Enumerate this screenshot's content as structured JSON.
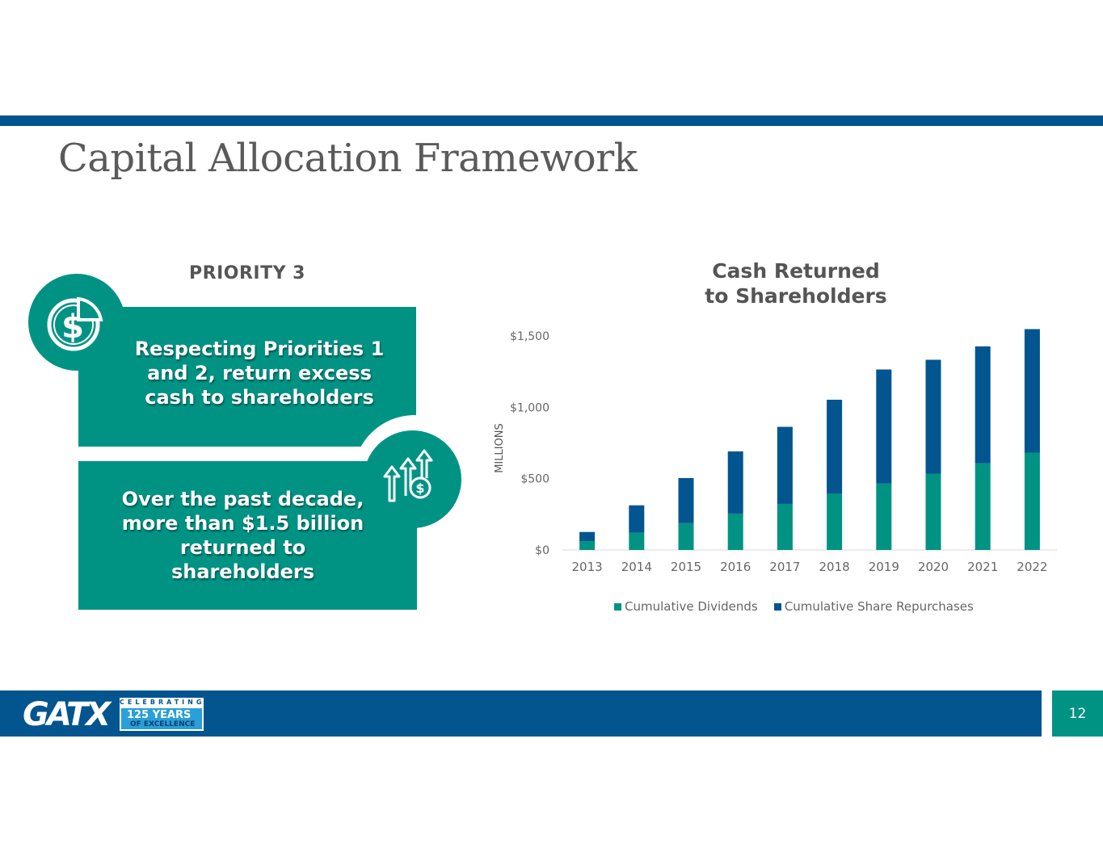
{
  "header": {
    "title": "Capital Allocation Framework"
  },
  "left": {
    "priority_heading": "PRIORITY 3",
    "panel1_text": "Respecting Priorities 1 and 2, return excess cash to shareholders",
    "panel2_text": "Over the past decade, more than $1.5 billion returned to shareholders",
    "panel1_icon": "dollar-pie-icon",
    "panel2_icon": "growth-arrows-dollar-icon"
  },
  "chart_data": {
    "type": "bar",
    "stacked": true,
    "title": "Cash Returned to Shareholders",
    "title_lines": [
      "Cash Returned",
      "to Shareholders"
    ],
    "ylabel": "MILLIONS",
    "xlabel": "",
    "categories": [
      "2013",
      "2014",
      "2015",
      "2016",
      "2017",
      "2018",
      "2019",
      "2020",
      "2021",
      "2022"
    ],
    "series": [
      {
        "name": "Cumulative Dividends",
        "color": "#009384",
        "values": [
          62,
          121,
          188,
          255,
          323,
          394,
          465,
          535,
          607,
          682
        ]
      },
      {
        "name": "Cumulative Share Repurchases",
        "color": "#02558f",
        "values": [
          64,
          192,
          316,
          436,
          540,
          659,
          800,
          798,
          820,
          866
        ]
      }
    ],
    "ylim": [
      0,
      1500
    ],
    "yticks": [
      0,
      500,
      1000,
      1500
    ],
    "ytick_labels": [
      "$0",
      "$500",
      "$1,000",
      "$1,500"
    ],
    "grid": false,
    "legend_position": "bottom"
  },
  "footer": {
    "logo_text": "GATX",
    "badge_line1": "CELEBRATING",
    "badge_line2": "125 YEARS",
    "badge_line3": "OF EXCELLENCE",
    "page_number": "12"
  },
  "colors": {
    "brand_blue": "#02558f",
    "brand_teal": "#009384",
    "title_gray": "#5a5a5a"
  }
}
